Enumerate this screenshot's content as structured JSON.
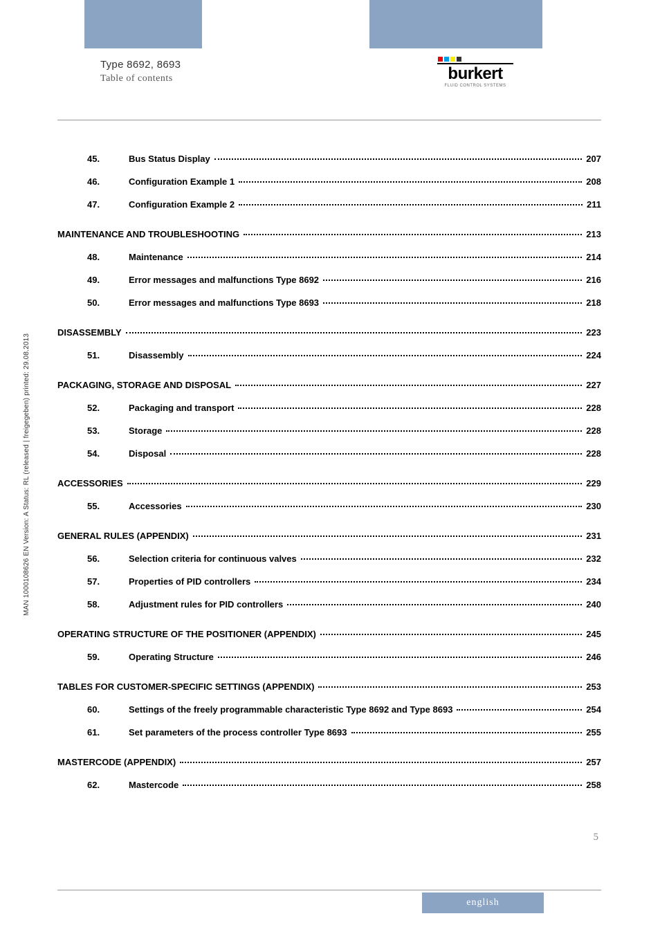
{
  "header": {
    "title": "Type 8692, 8693",
    "subtitle": "Table of contents"
  },
  "logo": {
    "brand": "burkert",
    "tagline": "FLUID CONTROL SYSTEMS",
    "colors": [
      "#e30613",
      "#009fe3",
      "#ffed00",
      "#333333"
    ]
  },
  "side_text": "MAN 1000108626 EN Version: A Status: RL (released | freigegeben) printed: 29.08.2013",
  "page_number": "5",
  "lang": "english",
  "colors": {
    "bar": "#8ca4c4",
    "text": "#000000",
    "rule": "#999999"
  },
  "toc": [
    {
      "type": "item",
      "num": "45.",
      "title": "Bus Status Display",
      "page": "207"
    },
    {
      "type": "item",
      "num": "46.",
      "title": "Configuration Example 1",
      "page": "208"
    },
    {
      "type": "item",
      "num": "47.",
      "title": "Configuration Example 2",
      "page": "211"
    },
    {
      "type": "section",
      "title": "MAINTENANCE AND TROUBLESHOOTING",
      "page": "213"
    },
    {
      "type": "item",
      "num": "48.",
      "title": "Maintenance",
      "page": "214"
    },
    {
      "type": "item",
      "num": "49.",
      "title": "Error messages and malfunctions Type 8692",
      "page": "216"
    },
    {
      "type": "item",
      "num": "50.",
      "title": "Error messages and malfunctions Type 8693",
      "page": "218"
    },
    {
      "type": "section",
      "title": "DISASSEMBLY",
      "page": "223"
    },
    {
      "type": "item",
      "num": "51.",
      "title": "Disassembly",
      "page": "224"
    },
    {
      "type": "section",
      "title": "PACKAGING, STORAGE AND DISPOSAL",
      "page": "227"
    },
    {
      "type": "item",
      "num": "52.",
      "title": "Packaging and transport",
      "page": "228"
    },
    {
      "type": "item",
      "num": "53.",
      "title": "Storage",
      "page": "228"
    },
    {
      "type": "item",
      "num": "54.",
      "title": "Disposal",
      "page": "228"
    },
    {
      "type": "section",
      "title": "ACCESSORIES",
      "page": "229"
    },
    {
      "type": "item",
      "num": "55.",
      "title": "Accessories",
      "page": "230"
    },
    {
      "type": "section",
      "title": "GENERAL RULES (APPENDIX)",
      "page": "231"
    },
    {
      "type": "item",
      "num": "56.",
      "title": "Selection criteria for continuous valves",
      "page": "232"
    },
    {
      "type": "item",
      "num": "57.",
      "title": "Properties of PID controllers",
      "page": "234"
    },
    {
      "type": "item",
      "num": "58.",
      "title": "Adjustment rules for PID controllers",
      "page": "240"
    },
    {
      "type": "section",
      "title": "OPERATING STRUCTURE OF THE POSITIONER (APPENDIX)",
      "page": "245"
    },
    {
      "type": "item",
      "num": "59.",
      "title": "Operating Structure",
      "page": "246"
    },
    {
      "type": "section",
      "title": "TABLES FOR CUSTOMER-SPECIFIC SETTINGS (APPENDIX)",
      "page": "253"
    },
    {
      "type": "item",
      "num": "60.",
      "title": "Settings of the freely programmable characteristic Type 8692 and Type 8693",
      "page": "254"
    },
    {
      "type": "item",
      "num": "61.",
      "title": "Set parameters of the process controller Type 8693",
      "page": "255"
    },
    {
      "type": "section",
      "title": "MASTERCODE  (APPENDIX)",
      "page": "257"
    },
    {
      "type": "item",
      "num": "62.",
      "title": "Mastercode",
      "page": "258"
    }
  ]
}
